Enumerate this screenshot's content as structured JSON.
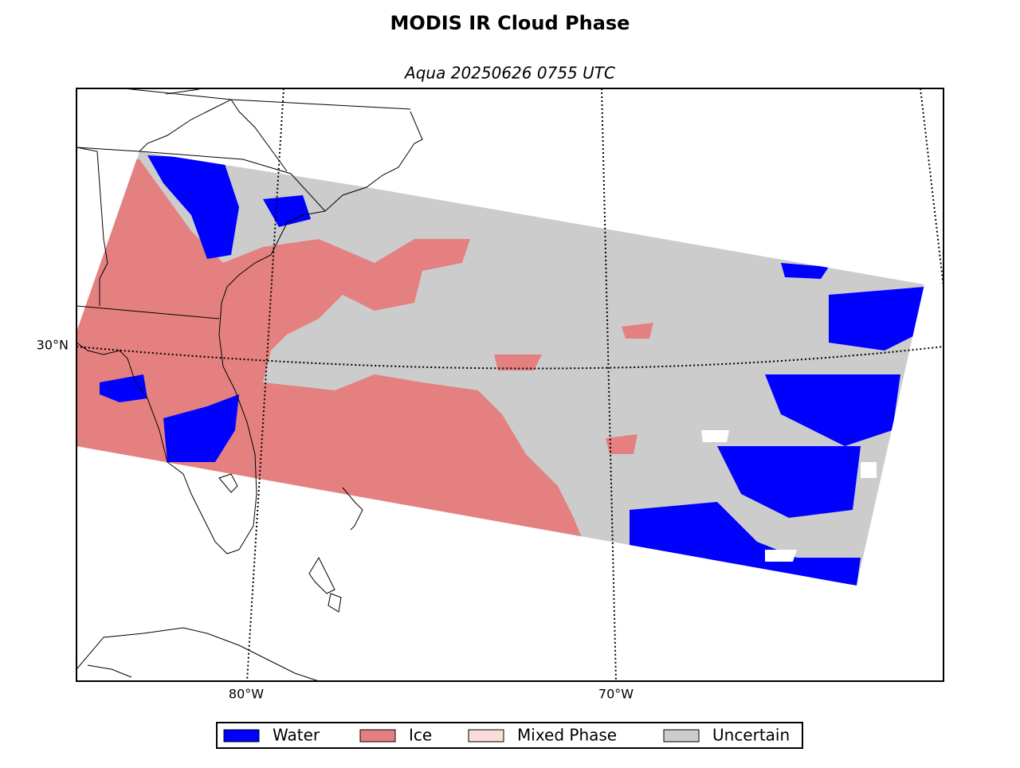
{
  "title": "MODIS IR Cloud Phase",
  "subtitle": "Aqua 20250626 0755 UTC",
  "graticule": {
    "latitude_labels": [
      "30°N"
    ],
    "longitude_labels": [
      "80°W",
      "70°W"
    ]
  },
  "legend": [
    {
      "label": "Water",
      "color": "#0000ff"
    },
    {
      "label": "Ice",
      "color": "#e58080"
    },
    {
      "label": "Mixed Phase",
      "color": "#fadcd8"
    },
    {
      "label": "Uncertain",
      "color": "#cccccc"
    }
  ]
}
